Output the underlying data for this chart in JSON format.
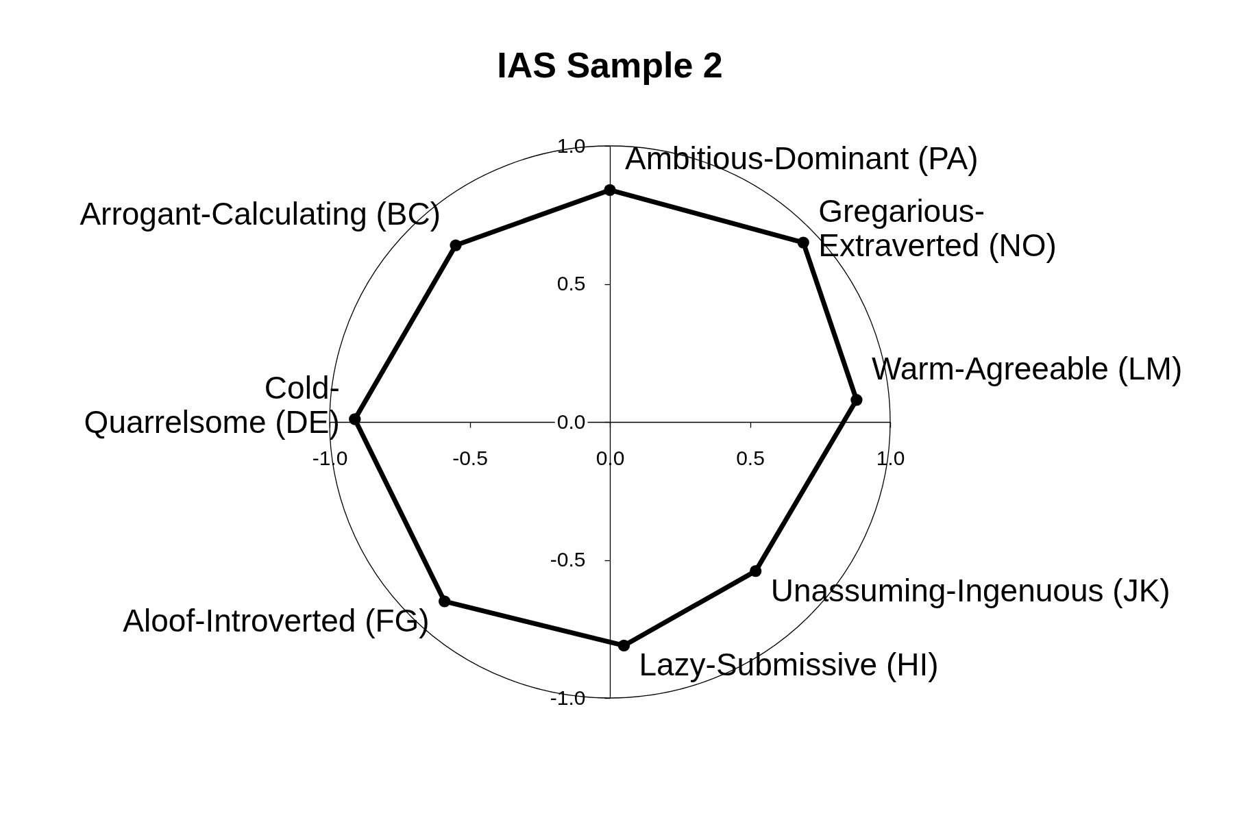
{
  "chart_data": {
    "type": "line",
    "title": "IAS Sample 2",
    "x": [
      0.0,
      0.69,
      0.88,
      0.52,
      0.05,
      -0.59,
      -0.91,
      -0.55
    ],
    "series": [
      {
        "color": "#000000",
        "values": [
          0.84,
          0.65,
          0.08,
          -0.54,
          -0.81,
          -0.65,
          0.01,
          0.64
        ]
      }
    ],
    "xlim": [
      -1,
      1
    ],
    "ylim": [
      -1,
      1
    ],
    "xticks": [
      {
        "value": -1,
        "label": "-1.0"
      },
      -0.5,
      {
        "value": 0,
        "label": "0.0"
      },
      0.5,
      {
        "value": 1,
        "label": "1.0"
      }
    ],
    "yticks": [
      {
        "value": -1,
        "label": "-1.0"
      },
      -0.5,
      {
        "value": 0,
        "label": "0.0"
      },
      0.5,
      {
        "value": 1,
        "label": "1.0"
      }
    ],
    "marker": "circle",
    "annotations": [
      {
        "text": "Ambitious-Dominant (PA)",
        "x": 0.0,
        "y": 0.84
      },
      {
        "text": "Gregarious-\nExtraverted (NO)",
        "x": 0.69,
        "y": 0.65
      },
      {
        "text": "Warm-Agreeable (LM)",
        "x": 0.88,
        "y": 0.08
      },
      {
        "text": "Unassuming-Ingenuous (JK)",
        "x": 0.52,
        "y": -0.54
      },
      {
        "text": "Lazy-Submissive (HI)",
        "x": 0.05,
        "y": -0.81
      },
      {
        "text": "Aloof-Introverted (FG)",
        "x": -0.59,
        "y": -0.65
      },
      {
        "text": "Cold-\nQuarrelsome (DE)",
        "x": -0.91,
        "y": 0.01
      },
      {
        "text": "Arrogant-Calculating (BC)",
        "x": -0.55,
        "y": 0.64
      }
    ]
  }
}
